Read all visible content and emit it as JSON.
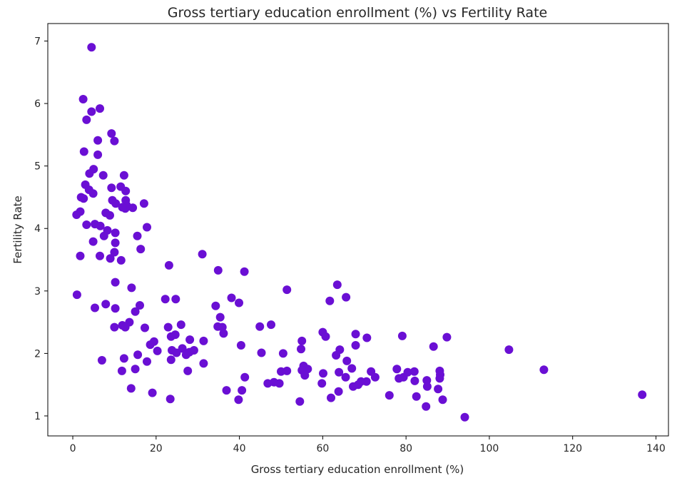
{
  "chart_data": {
    "type": "scatter",
    "title": "Gross tertiary education enrollment (%) vs Fertility Rate",
    "xlabel": "Gross tertiary education enrollment (%)",
    "ylabel": "Fertility Rate",
    "xlim": [
      -6,
      143
    ],
    "ylim": [
      0.68,
      7.28
    ],
    "xticks": [
      0,
      20,
      40,
      60,
      80,
      100,
      120,
      140
    ],
    "yticks": [
      1,
      2,
      3,
      4,
      5,
      6,
      7
    ],
    "grid": false,
    "point_color": "#6a0fd4",
    "points": [
      [
        4.5,
        6.9
      ],
      [
        2.5,
        6.07
      ],
      [
        6.5,
        5.92
      ],
      [
        4.5,
        5.87
      ],
      [
        3.3,
        5.74
      ],
      [
        9.3,
        5.52
      ],
      [
        10,
        5.4
      ],
      [
        6,
        5.41
      ],
      [
        2.7,
        5.23
      ],
      [
        6,
        5.18
      ],
      [
        5,
        4.95
      ],
      [
        4,
        4.88
      ],
      [
        7.3,
        4.85
      ],
      [
        12.3,
        4.85
      ],
      [
        3,
        4.7
      ],
      [
        2,
        4.5
      ],
      [
        4.9,
        4.56
      ],
      [
        3.9,
        4.62
      ],
      [
        11.5,
        4.67
      ],
      [
        12.7,
        4.6
      ],
      [
        9.3,
        4.65
      ],
      [
        2.6,
        4.48
      ],
      [
        9.5,
        4.45
      ],
      [
        10.3,
        4.4
      ],
      [
        12.7,
        4.45
      ],
      [
        12.9,
        4.37
      ],
      [
        12.6,
        4.32
      ],
      [
        11.9,
        4.34
      ],
      [
        14.4,
        4.33
      ],
      [
        17.1,
        4.4
      ],
      [
        1.8,
        4.27
      ],
      [
        0.9,
        4.22
      ],
      [
        7.9,
        4.25
      ],
      [
        8.9,
        4.21
      ],
      [
        3.3,
        4.06
      ],
      [
        5.3,
        4.07
      ],
      [
        6.6,
        4.04
      ],
      [
        17.8,
        4.02
      ],
      [
        8.3,
        3.97
      ],
      [
        10.2,
        3.93
      ],
      [
        7.5,
        3.88
      ],
      [
        15.5,
        3.88
      ],
      [
        4.9,
        3.79
      ],
      [
        10.2,
        3.77
      ],
      [
        16.3,
        3.67
      ],
      [
        1.8,
        3.56
      ],
      [
        6.5,
        3.56
      ],
      [
        10,
        3.62
      ],
      [
        9,
        3.52
      ],
      [
        11.6,
        3.49
      ],
      [
        31.1,
        3.59
      ],
      [
        23.1,
        3.41
      ],
      [
        34.9,
        3.33
      ],
      [
        41.2,
        3.31
      ],
      [
        10.2,
        3.14
      ],
      [
        14.1,
        3.05
      ],
      [
        51.4,
        3.02
      ],
      [
        63.5,
        3.1
      ],
      [
        1,
        2.94
      ],
      [
        22.2,
        2.87
      ],
      [
        24.7,
        2.87
      ],
      [
        38.1,
        2.89
      ],
      [
        39.9,
        2.81
      ],
      [
        61.7,
        2.84
      ],
      [
        65.6,
        2.9
      ],
      [
        7.9,
        2.79
      ],
      [
        16.1,
        2.77
      ],
      [
        5.3,
        2.73
      ],
      [
        10.2,
        2.72
      ],
      [
        15,
        2.67
      ],
      [
        34.3,
        2.76
      ],
      [
        35.4,
        2.58
      ],
      [
        13.6,
        2.5
      ],
      [
        11.9,
        2.45
      ],
      [
        12.6,
        2.42
      ],
      [
        10,
        2.42
      ],
      [
        17.3,
        2.41
      ],
      [
        22.9,
        2.42
      ],
      [
        26,
        2.46
      ],
      [
        34.8,
        2.43
      ],
      [
        35.9,
        2.42
      ],
      [
        44.9,
        2.43
      ],
      [
        47.6,
        2.46
      ],
      [
        36.2,
        2.32
      ],
      [
        23.6,
        2.27
      ],
      [
        24.6,
        2.3
      ],
      [
        28.1,
        2.22
      ],
      [
        31.4,
        2.2
      ],
      [
        55,
        2.2
      ],
      [
        60,
        2.34
      ],
      [
        60.7,
        2.27
      ],
      [
        67.9,
        2.31
      ],
      [
        70.6,
        2.25
      ],
      [
        79.1,
        2.28
      ],
      [
        89.8,
        2.26
      ],
      [
        19.5,
        2.19
      ],
      [
        18.6,
        2.14
      ],
      [
        23.8,
        2.05
      ],
      [
        26.3,
        2.08
      ],
      [
        29.1,
        2.05
      ],
      [
        28,
        2.02
      ],
      [
        24.9,
        2.01
      ],
      [
        27.2,
        1.98
      ],
      [
        20.3,
        2.04
      ],
      [
        15.6,
        1.98
      ],
      [
        12.3,
        1.92
      ],
      [
        23.6,
        1.9
      ],
      [
        17.8,
        1.87
      ],
      [
        31.4,
        1.84
      ],
      [
        7,
        1.89
      ],
      [
        40.4,
        2.13
      ],
      [
        45.3,
        2.01
      ],
      [
        50.5,
        2
      ],
      [
        54.8,
        2.07
      ],
      [
        63.2,
        1.97
      ],
      [
        64.1,
        2.06
      ],
      [
        65.8,
        1.88
      ],
      [
        67.9,
        2.13
      ],
      [
        86.6,
        2.11
      ],
      [
        104.7,
        2.06
      ],
      [
        11.8,
        1.72
      ],
      [
        15,
        1.75
      ],
      [
        27.6,
        1.72
      ],
      [
        50,
        1.71
      ],
      [
        51.4,
        1.72
      ],
      [
        55.4,
        1.8
      ],
      [
        56.4,
        1.75
      ],
      [
        55,
        1.73
      ],
      [
        55.7,
        1.65
      ],
      [
        49.6,
        1.52
      ],
      [
        48.3,
        1.54
      ],
      [
        46.8,
        1.52
      ],
      [
        41.3,
        1.62
      ],
      [
        60.1,
        1.68
      ],
      [
        63.9,
        1.7
      ],
      [
        67,
        1.76
      ],
      [
        65.5,
        1.62
      ],
      [
        71.6,
        1.71
      ],
      [
        72.6,
        1.62
      ],
      [
        77.8,
        1.75
      ],
      [
        80.4,
        1.7
      ],
      [
        82,
        1.71
      ],
      [
        88.1,
        1.72
      ],
      [
        88.2,
        1.66
      ],
      [
        113.1,
        1.74
      ],
      [
        70.5,
        1.55
      ],
      [
        68.5,
        1.5
      ],
      [
        69.2,
        1.55
      ],
      [
        67.3,
        1.47
      ],
      [
        63.8,
        1.39
      ],
      [
        59.8,
        1.52
      ],
      [
        79.4,
        1.62
      ],
      [
        78.3,
        1.6
      ],
      [
        82.1,
        1.56
      ],
      [
        85,
        1.57
      ],
      [
        85.1,
        1.47
      ],
      [
        87.7,
        1.43
      ],
      [
        88.1,
        1.6
      ],
      [
        82.5,
        1.31
      ],
      [
        88.8,
        1.26
      ],
      [
        62,
        1.29
      ],
      [
        76,
        1.33
      ],
      [
        36.9,
        1.41
      ],
      [
        40.6,
        1.41
      ],
      [
        14,
        1.44
      ],
      [
        19.1,
        1.37
      ],
      [
        23.4,
        1.27
      ],
      [
        39.8,
        1.26
      ],
      [
        54.5,
        1.23
      ],
      [
        84.8,
        1.15
      ],
      [
        94.1,
        0.98
      ],
      [
        136.7,
        1.34
      ]
    ]
  }
}
